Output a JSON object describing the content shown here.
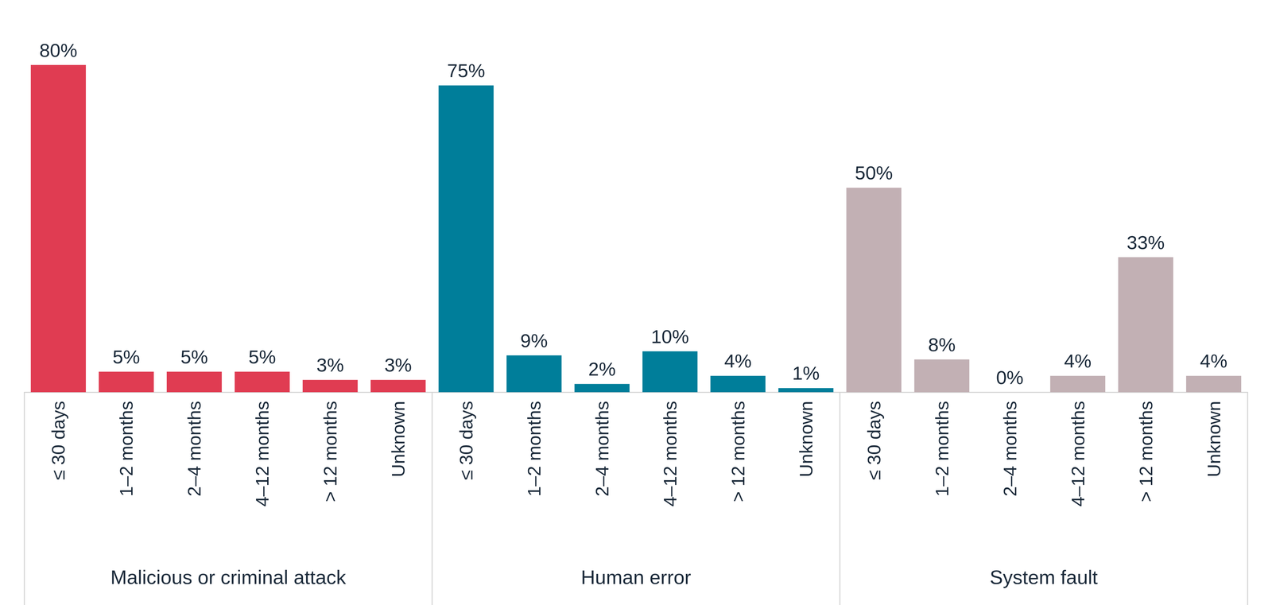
{
  "chart_data": {
    "type": "bar",
    "categories": [
      "≤ 30 days",
      "1–2 months",
      "2–4 months",
      "4–12 months",
      "> 12 months",
      "Unknown"
    ],
    "series": [
      {
        "name": "Malicious or criminal attack",
        "color": "#e03c52",
        "values": [
          80,
          5,
          5,
          5,
          3,
          3
        ],
        "value_labels": [
          "80%",
          "5%",
          "5%",
          "5%",
          "3%",
          "3%"
        ]
      },
      {
        "name": "Human error",
        "color": "#007e9a",
        "values": [
          75,
          9,
          2,
          10,
          4,
          1
        ],
        "value_labels": [
          "75%",
          "9%",
          "2%",
          "10%",
          "4%",
          "1%"
        ]
      },
      {
        "name": "System fault",
        "color": "#c2b0b4",
        "values": [
          50,
          8,
          0,
          4,
          33,
          4
        ],
        "value_labels": [
          "50%",
          "8%",
          "0%",
          "4%",
          "33%",
          "4%"
        ]
      }
    ],
    "ylim": [
      0,
      80
    ],
    "data_labels": true,
    "tick_labels": "x",
    "grid": false
  }
}
